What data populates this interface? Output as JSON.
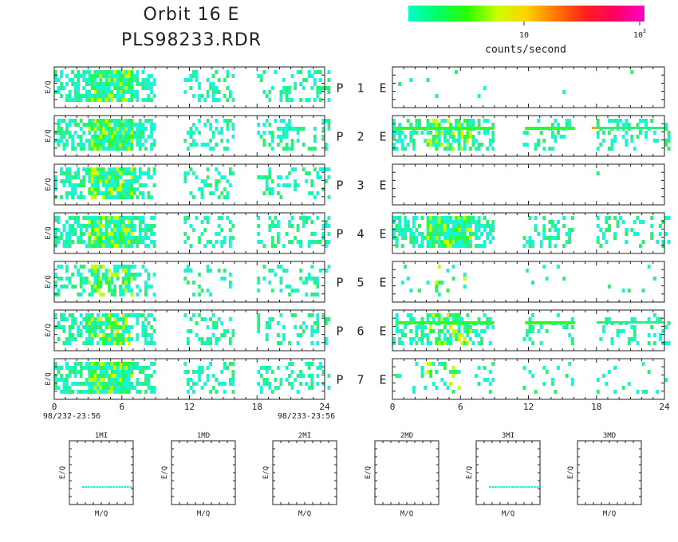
{
  "header": {
    "title": "Orbit 16 E",
    "file": "PLS98233.RDR"
  },
  "colorbar": {
    "label": "counts/second",
    "tick_ten": "10",
    "tick_hundred_base": "10",
    "tick_hundred_exp": "2",
    "colors": [
      "#00ffc8",
      "#00ff64",
      "#28ff00",
      "#c8ff00",
      "#ffd200",
      "#ff7800",
      "#ff1e1e",
      "#ff0064",
      "#ff00c8"
    ]
  },
  "colors": {
    "low": "#19f5d2",
    "mid": "#2af078",
    "high": "#28ff28",
    "peak": "#c8ff00",
    "hot": "#ffa000"
  },
  "time_axis": {
    "ticks": [
      "0",
      "6",
      "12",
      "18",
      "24"
    ],
    "start_label": "98/232-23:56",
    "end_label": "98/233-23:56"
  },
  "ylabel": "E/Q",
  "rows": [
    {
      "label_p": "P",
      "label_n": "1",
      "label_e": "E"
    },
    {
      "label_p": "P",
      "label_n": "2",
      "label_e": "E"
    },
    {
      "label_p": "P",
      "label_n": "3",
      "label_e": "E"
    },
    {
      "label_p": "P",
      "label_n": "4",
      "label_e": "E"
    },
    {
      "label_p": "P",
      "label_n": "5",
      "label_e": "E"
    },
    {
      "label_p": "P",
      "label_n": "6",
      "label_e": "E"
    },
    {
      "label_p": "P",
      "label_n": "7",
      "label_e": "E"
    }
  ],
  "chart_data": {
    "type": "heatmap",
    "x_unit_range": [
      0,
      24
    ],
    "left_column_density": [
      0.55,
      0.6,
      0.5,
      0.55,
      0.4,
      0.5,
      0.55
    ],
    "right_column_density": [
      0.02,
      0.4,
      0.005,
      0.55,
      0.04,
      0.35,
      0.15
    ],
    "intervals": [
      [
        0,
        9
      ],
      [
        11.5,
        16
      ],
      [
        18,
        24.5
      ]
    ]
  },
  "small_plots": [
    {
      "title": "1MI",
      "xlabel": "M/Q",
      "ylabel": "E/Q",
      "has_line": true
    },
    {
      "title": "1MD",
      "xlabel": "M/Q",
      "ylabel": "E/Q",
      "has_line": false
    },
    {
      "title": "2MI",
      "xlabel": "M/Q",
      "ylabel": "E/Q",
      "has_line": false
    },
    {
      "title": "2MD",
      "xlabel": "M/Q",
      "ylabel": "E/Q",
      "has_line": false
    },
    {
      "title": "3MI",
      "xlabel": "M/Q",
      "ylabel": "E/Q",
      "has_line": true
    },
    {
      "title": "3MD",
      "xlabel": "M/Q",
      "ylabel": "E/Q",
      "has_line": false
    }
  ]
}
